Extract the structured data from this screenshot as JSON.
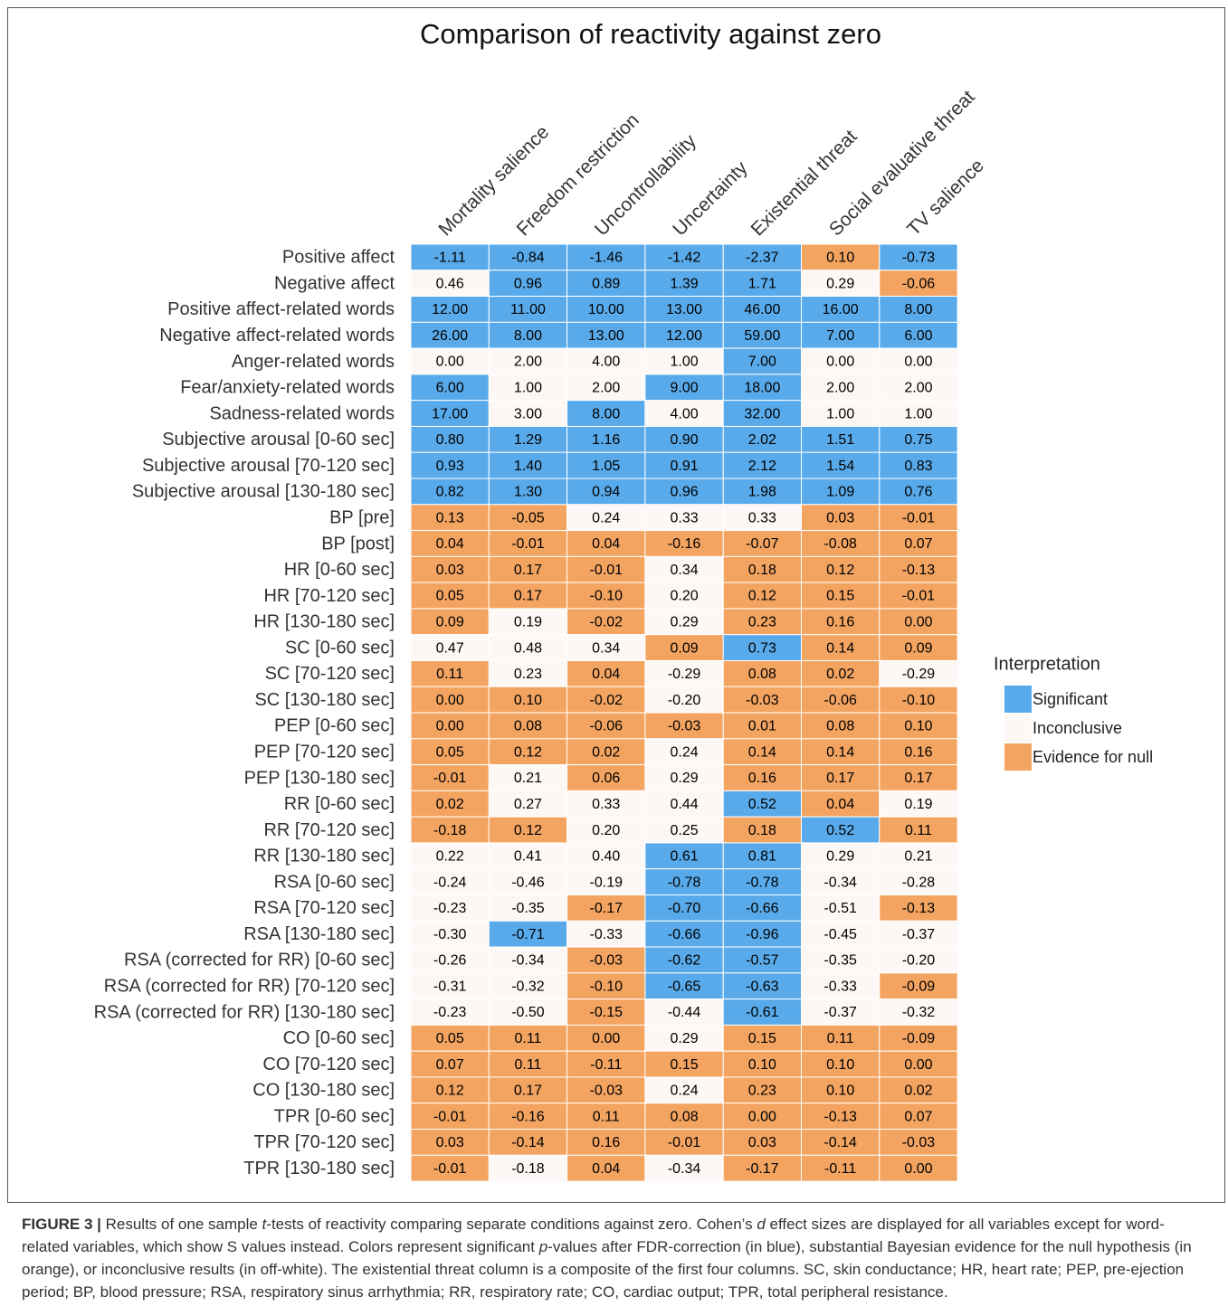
{
  "chart_data": {
    "type": "heatmap",
    "title": "Comparison of reactivity against zero",
    "columns": [
      "Mortality salience",
      "Freedom restriction",
      "Uncontrollability",
      "Uncertainty",
      "Existential threat",
      "Social evaluative threat",
      "TV salience"
    ],
    "rows": [
      "Positive affect",
      "Negative affect",
      "Positive affect-related words",
      "Negative affect-related words",
      "Anger-related words",
      "Fear/anxiety-related words",
      "Sadness-related words",
      "Subjective arousal [0-60 sec]",
      "Subjective arousal [70-120 sec]",
      "Subjective arousal [130-180 sec]",
      "BP [pre]",
      "BP [post]",
      "HR [0-60 sec]",
      "HR [70-120 sec]",
      "HR [130-180 sec]",
      "SC [0-60 sec]",
      "SC [70-120 sec]",
      "SC [130-180 sec]",
      "PEP [0-60 sec]",
      "PEP [70-120 sec]",
      "PEP [130-180 sec]",
      "RR [0-60 sec]",
      "RR [70-120 sec]",
      "RR [130-180 sec]",
      "RSA [0-60 sec]",
      "RSA [70-120 sec]",
      "RSA [130-180 sec]",
      "RSA (corrected for RR) [0-60 sec]",
      "RSA (corrected for RR) [70-120 sec]",
      "RSA (corrected for RR) [130-180 sec]",
      "CO [0-60 sec]",
      "CO [70-120 sec]",
      "CO [130-180 sec]",
      "TPR [0-60 sec]",
      "TPR [70-120 sec]",
      "TPR [130-180 sec]"
    ],
    "values": [
      [
        -1.11,
        -0.84,
        -1.46,
        -1.42,
        -2.37,
        0.1,
        -0.73
      ],
      [
        0.46,
        0.96,
        0.89,
        1.39,
        1.71,
        0.29,
        -0.06
      ],
      [
        12,
        11,
        10,
        13,
        46,
        16,
        8
      ],
      [
        26,
        8,
        13,
        12,
        59,
        7,
        6
      ],
      [
        0,
        2,
        4,
        1,
        7,
        0,
        0
      ],
      [
        6,
        1,
        2,
        9,
        18,
        2,
        2
      ],
      [
        17,
        3,
        8,
        4,
        32,
        1,
        1
      ],
      [
        0.8,
        1.29,
        1.16,
        0.9,
        2.02,
        1.51,
        0.75
      ],
      [
        0.93,
        1.4,
        1.05,
        0.91,
        2.12,
        1.54,
        0.83
      ],
      [
        0.82,
        1.3,
        0.94,
        0.96,
        1.98,
        1.09,
        0.76
      ],
      [
        0.13,
        -0.05,
        0.24,
        0.33,
        0.33,
        0.03,
        -0.01
      ],
      [
        0.04,
        -0.01,
        0.04,
        -0.16,
        -0.07,
        -0.08,
        0.07
      ],
      [
        0.03,
        0.17,
        -0.01,
        0.34,
        0.18,
        0.12,
        -0.13
      ],
      [
        0.05,
        0.17,
        -0.1,
        0.2,
        0.12,
        0.15,
        -0.01
      ],
      [
        0.09,
        0.19,
        -0.02,
        0.29,
        0.23,
        0.16,
        0
      ],
      [
        0.47,
        0.48,
        0.34,
        0.09,
        0.73,
        0.14,
        0.09
      ],
      [
        0.11,
        0.23,
        0.04,
        -0.29,
        0.08,
        0.02,
        -0.29
      ],
      [
        0,
        0.1,
        -0.02,
        -0.2,
        -0.03,
        -0.06,
        -0.1
      ],
      [
        0,
        0.08,
        -0.06,
        -0.03,
        0.01,
        0.08,
        0.1
      ],
      [
        0.05,
        0.12,
        0.02,
        0.24,
        0.14,
        0.14,
        0.16
      ],
      [
        -0.01,
        0.21,
        0.06,
        0.29,
        0.16,
        0.17,
        0.17
      ],
      [
        0.02,
        0.27,
        0.33,
        0.44,
        0.52,
        0.04,
        0.19
      ],
      [
        -0.18,
        0.12,
        0.2,
        0.25,
        0.18,
        0.52,
        0.11
      ],
      [
        0.22,
        0.41,
        0.4,
        0.61,
        0.81,
        0.29,
        0.21
      ],
      [
        -0.24,
        -0.46,
        -0.19,
        -0.78,
        -0.78,
        -0.34,
        -0.28
      ],
      [
        -0.23,
        -0.35,
        -0.17,
        -0.7,
        -0.66,
        -0.51,
        -0.13
      ],
      [
        -0.3,
        -0.71,
        -0.33,
        -0.66,
        -0.96,
        -0.45,
        -0.37
      ],
      [
        -0.26,
        -0.34,
        -0.03,
        -0.62,
        -0.57,
        -0.35,
        -0.2
      ],
      [
        -0.31,
        -0.32,
        -0.1,
        -0.65,
        -0.63,
        -0.33,
        -0.09
      ],
      [
        -0.23,
        -0.5,
        -0.15,
        -0.44,
        -0.61,
        -0.37,
        -0.32
      ],
      [
        0.05,
        0.11,
        0,
        0.29,
        0.15,
        0.11,
        -0.09
      ],
      [
        0.07,
        0.11,
        -0.11,
        0.15,
        0.1,
        0.1,
        0
      ],
      [
        0.12,
        0.17,
        -0.03,
        0.24,
        0.23,
        0.1,
        0.02
      ],
      [
        -0.01,
        -0.16,
        0.11,
        0.08,
        0,
        -0.13,
        0.07
      ],
      [
        0.03,
        -0.14,
        0.16,
        -0.01,
        0.03,
        -0.14,
        -0.03
      ],
      [
        -0.01,
        -0.18,
        0.04,
        -0.34,
        -0.17,
        -0.11,
        0
      ]
    ],
    "value_labels": [
      [
        "-1.11",
        "-0.84",
        "-1.46",
        "-1.42",
        "-2.37",
        "0.10",
        "-0.73"
      ],
      [
        "0.46",
        "0.96",
        "0.89",
        "1.39",
        "1.71",
        "0.29",
        "-0.06"
      ],
      [
        "12.00",
        "11.00",
        "10.00",
        "13.00",
        "46.00",
        "16.00",
        "8.00"
      ],
      [
        "26.00",
        "8.00",
        "13.00",
        "12.00",
        "59.00",
        "7.00",
        "6.00"
      ],
      [
        "0.00",
        "2.00",
        "4.00",
        "1.00",
        "7.00",
        "0.00",
        "0.00"
      ],
      [
        "6.00",
        "1.00",
        "2.00",
        "9.00",
        "18.00",
        "2.00",
        "2.00"
      ],
      [
        "17.00",
        "3.00",
        "8.00",
        "4.00",
        "32.00",
        "1.00",
        "1.00"
      ],
      [
        "0.80",
        "1.29",
        "1.16",
        "0.90",
        "2.02",
        "1.51",
        "0.75"
      ],
      [
        "0.93",
        "1.40",
        "1.05",
        "0.91",
        "2.12",
        "1.54",
        "0.83"
      ],
      [
        "0.82",
        "1.30",
        "0.94",
        "0.96",
        "1.98",
        "1.09",
        "0.76"
      ],
      [
        "0.13",
        "-0.05",
        "0.24",
        "0.33",
        "0.33",
        "0.03",
        "-0.01"
      ],
      [
        "0.04",
        "-0.01",
        "0.04",
        "-0.16",
        "-0.07",
        "-0.08",
        "0.07"
      ],
      [
        "0.03",
        "0.17",
        "-0.01",
        "0.34",
        "0.18",
        "0.12",
        "-0.13"
      ],
      [
        "0.05",
        "0.17",
        "-0.10",
        "0.20",
        "0.12",
        "0.15",
        "-0.01"
      ],
      [
        "0.09",
        "0.19",
        "-0.02",
        "0.29",
        "0.23",
        "0.16",
        "0.00"
      ],
      [
        "0.47",
        "0.48",
        "0.34",
        "0.09",
        "0.73",
        "0.14",
        "0.09"
      ],
      [
        "0.11",
        "0.23",
        "0.04",
        "-0.29",
        "0.08",
        "0.02",
        "-0.29"
      ],
      [
        "0.00",
        "0.10",
        "-0.02",
        "-0.20",
        "-0.03",
        "-0.06",
        "-0.10"
      ],
      [
        "0.00",
        "0.08",
        "-0.06",
        "-0.03",
        "0.01",
        "0.08",
        "0.10"
      ],
      [
        "0.05",
        "0.12",
        "0.02",
        "0.24",
        "0.14",
        "0.14",
        "0.16"
      ],
      [
        "-0.01",
        "0.21",
        "0.06",
        "0.29",
        "0.16",
        "0.17",
        "0.17"
      ],
      [
        "0.02",
        "0.27",
        "0.33",
        "0.44",
        "0.52",
        "0.04",
        "0.19"
      ],
      [
        "-0.18",
        "0.12",
        "0.20",
        "0.25",
        "0.18",
        "0.52",
        "0.11"
      ],
      [
        "0.22",
        "0.41",
        "0.40",
        "0.61",
        "0.81",
        "0.29",
        "0.21"
      ],
      [
        "-0.24",
        "-0.46",
        "-0.19",
        "-0.78",
        "-0.78",
        "-0.34",
        "-0.28"
      ],
      [
        "-0.23",
        "-0.35",
        "-0.17",
        "-0.70",
        "-0.66",
        "-0.51",
        "-0.13"
      ],
      [
        "-0.30",
        "-0.71",
        "-0.33",
        "-0.66",
        "-0.96",
        "-0.45",
        "-0.37"
      ],
      [
        "-0.26",
        "-0.34",
        "-0.03",
        "-0.62",
        "-0.57",
        "-0.35",
        "-0.20"
      ],
      [
        "-0.31",
        "-0.32",
        "-0.10",
        "-0.65",
        "-0.63",
        "-0.33",
        "-0.09"
      ],
      [
        "-0.23",
        "-0.50",
        "-0.15",
        "-0.44",
        "-0.61",
        "-0.37",
        "-0.32"
      ],
      [
        "0.05",
        "0.11",
        "0.00",
        "0.29",
        "0.15",
        "0.11",
        "-0.09"
      ],
      [
        "0.07",
        "0.11",
        "-0.11",
        "0.15",
        "0.10",
        "0.10",
        "0.00"
      ],
      [
        "0.12",
        "0.17",
        "-0.03",
        "0.24",
        "0.23",
        "0.10",
        "0.02"
      ],
      [
        "-0.01",
        "-0.16",
        "0.11",
        "0.08",
        "0.00",
        "-0.13",
        "0.07"
      ],
      [
        "0.03",
        "-0.14",
        "0.16",
        "-0.01",
        "0.03",
        "-0.14",
        "-0.03"
      ],
      [
        "-0.01",
        "-0.18",
        "0.04",
        "-0.34",
        "-0.17",
        "-0.11",
        "0.00"
      ]
    ],
    "classes": [
      [
        0,
        0,
        0,
        0,
        0,
        2,
        0
      ],
      [
        1,
        0,
        0,
        0,
        0,
        1,
        2
      ],
      [
        0,
        0,
        0,
        0,
        0,
        0,
        0
      ],
      [
        0,
        0,
        0,
        0,
        0,
        0,
        0
      ],
      [
        1,
        1,
        1,
        1,
        0,
        1,
        1
      ],
      [
        0,
        1,
        1,
        0,
        0,
        1,
        1
      ],
      [
        0,
        1,
        0,
        1,
        0,
        1,
        1
      ],
      [
        0,
        0,
        0,
        0,
        0,
        0,
        0
      ],
      [
        0,
        0,
        0,
        0,
        0,
        0,
        0
      ],
      [
        0,
        0,
        0,
        0,
        0,
        0,
        0
      ],
      [
        2,
        2,
        1,
        1,
        1,
        2,
        2
      ],
      [
        2,
        2,
        2,
        2,
        2,
        2,
        2
      ],
      [
        2,
        2,
        2,
        1,
        2,
        2,
        2
      ],
      [
        2,
        2,
        2,
        1,
        2,
        2,
        2
      ],
      [
        2,
        1,
        2,
        1,
        2,
        2,
        2
      ],
      [
        1,
        1,
        1,
        2,
        0,
        2,
        2
      ],
      [
        2,
        1,
        2,
        1,
        2,
        2,
        1
      ],
      [
        2,
        2,
        2,
        1,
        2,
        2,
        2
      ],
      [
        2,
        2,
        2,
        2,
        2,
        2,
        2
      ],
      [
        2,
        2,
        2,
        1,
        2,
        2,
        2
      ],
      [
        2,
        1,
        2,
        1,
        2,
        2,
        2
      ],
      [
        2,
        1,
        1,
        1,
        0,
        2,
        1
      ],
      [
        2,
        2,
        1,
        1,
        2,
        0,
        2
      ],
      [
        1,
        1,
        1,
        0,
        0,
        1,
        1
      ],
      [
        1,
        1,
        1,
        0,
        0,
        1,
        1
      ],
      [
        1,
        1,
        2,
        0,
        0,
        1,
        2
      ],
      [
        1,
        0,
        1,
        0,
        0,
        1,
        1
      ],
      [
        1,
        1,
        2,
        0,
        0,
        1,
        1
      ],
      [
        1,
        1,
        2,
        0,
        0,
        1,
        2
      ],
      [
        1,
        1,
        2,
        1,
        0,
        1,
        1
      ],
      [
        2,
        2,
        2,
        1,
        2,
        2,
        2
      ],
      [
        2,
        2,
        2,
        2,
        2,
        2,
        2
      ],
      [
        2,
        2,
        2,
        1,
        2,
        2,
        2
      ],
      [
        2,
        2,
        2,
        2,
        2,
        2,
        2
      ],
      [
        2,
        2,
        2,
        2,
        2,
        2,
        2
      ],
      [
        2,
        1,
        2,
        1,
        2,
        2,
        2
      ]
    ],
    "legend": {
      "title": "Interpretation",
      "entries": [
        {
          "name": "Significant",
          "color": "#59aaea"
        },
        {
          "name": "Inconclusive",
          "color": "#fdf8f5"
        },
        {
          "name": "Evidence for null",
          "color": "#f3a461"
        }
      ]
    }
  },
  "caption": [
    "FIGURE 3 |",
    " Results of one sample ",
    "t",
    "-tests of reactivity comparing separate conditions against zero. Cohen’s ",
    "d",
    " effect sizes are displayed for all variables except for word-related variables, which show S values instead. Colors represent significant ",
    "p",
    "-values after FDR-correction (in blue), substantial Bayesian evidence for the null hypothesis (in orange), or inconclusive results (in off-white). The existential threat column is a composite of the first four columns. SC, skin conductance; HR, heart rate; PEP, pre-ejection period; BP, blood pressure; RSA, respiratory sinus arrhythmia; RR, respiratory rate; CO, cardiac output; TPR, total peripheral resistance."
  ]
}
